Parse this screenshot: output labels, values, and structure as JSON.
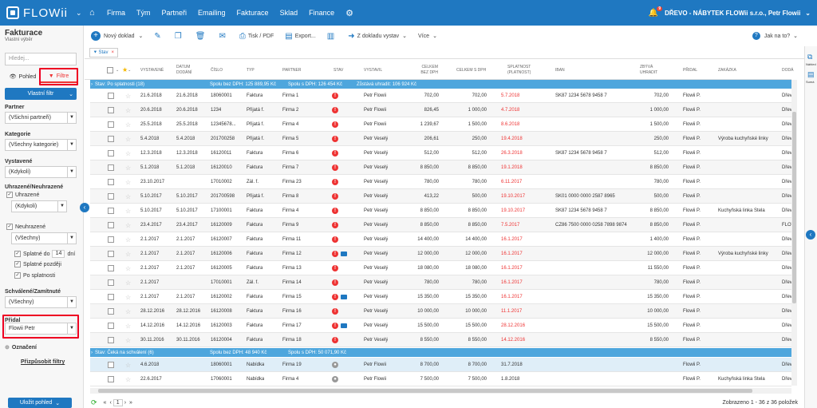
{
  "app": {
    "logo": "FLOWii"
  },
  "nav": {
    "items": [
      "Firma",
      "Tým",
      "Partneři",
      "Emailing",
      "Fakturace",
      "Sklad",
      "Finance"
    ]
  },
  "user": {
    "notifications": "9",
    "company": "DŘEVO - NÁBYTEK FLOWii s.r.o., Petr Flowii"
  },
  "left": {
    "title": "Fakturace",
    "subtitle": "Vlastní výběr",
    "search_placeholder": "Hledej...",
    "tab_view": "Pohled",
    "tab_filter": "Filtre",
    "custom_filter": "Vlastní filtr",
    "partner_label": "Partner",
    "partner_value": "(Všichni partneři)",
    "category_label": "Kategorie",
    "category_value": "(Všechny kategorie)",
    "issued_label": "Vystavené",
    "issued_value": "(Kdykoli)",
    "paid_label": "Uhrazené/Neuhrazené",
    "paid_check": "Uhrazené",
    "paid_value": "(Kdykoli)",
    "unpaid_check": "Neuhrazené",
    "unpaid_value": "(Všechny)",
    "due_to": "Splatné do",
    "due_days": "14",
    "days": "dní",
    "due_later": "Splatné později",
    "after_due": "Po splatnosti",
    "approved_label": "Schválené/Zamítnuté",
    "approved_value": "(Všechny)",
    "added_label": "Přidal",
    "added_value": "Flowii Petr",
    "marking": "Označení",
    "customize": "Přizpůsobit filtry",
    "save_view": "Uložit pohled"
  },
  "toolbar": {
    "new_doc": "Nový doklad",
    "print": "Tisk / PDF",
    "export": "Export...",
    "from_stock": "Z dokladu vystav",
    "more": "Více",
    "help": "Jak na to?"
  },
  "chip": {
    "label": "Stav"
  },
  "columns": [
    "VYSTAVENÉ",
    "DATUM DODÁNÍ",
    "ČÍSLO",
    "TYP",
    "PARTNER",
    "STAV",
    "VYSTAVIL",
    "CELKEM BEZ DPH",
    "CELKEM S DPH",
    "SPLATNOST (PLATNOST)",
    "IBAN",
    "ZBÝVÁ UHRADIT",
    "PŘIDAL",
    "ZAKÁZKA",
    "DODÁ"
  ],
  "group1": {
    "label": "Stav: Po splatnosti (18)",
    "sum1": "Spolu bez DPH: 125 889,95 Kč",
    "sum2": "Spolu s DPH: 126 454 Kč",
    "sum3": "Zůstává uhradit: 106 924 Kč"
  },
  "group2": {
    "label": "Stav: Čeká na schválení (6)",
    "sum1": "Spolu bez DPH: 48 940 Kč",
    "sum2": "Spolu s DPH: 50 071,90 Kč"
  },
  "rows": [
    {
      "d1": "21.6.2018",
      "d2": "21.6.2018",
      "num": "18060001",
      "type": "Faktura",
      "partner": "Firma 1",
      "mail": false,
      "by": "Petr Flowii",
      "net": "702,00",
      "gross": "702,00",
      "due": "5.7.2018",
      "iban": "SK87 1234 5678 9458 7",
      "rem": "702,00",
      "added": "Flowii P.",
      "order": "",
      "dod": "Dřev"
    },
    {
      "d1": "20.6.2018",
      "d2": "20.6.2018",
      "num": "1234",
      "type": "Přijatá f.",
      "partner": "Firma 2",
      "mail": false,
      "by": "Petr Flowii",
      "net": "826,45",
      "gross": "1 000,00",
      "due": "4.7.2018",
      "iban": "",
      "rem": "1 000,00",
      "added": "Flowii P.",
      "order": "",
      "dod": "Dřev"
    },
    {
      "d1": "25.5.2018",
      "d2": "25.5.2018",
      "num": "12345678...",
      "type": "Přijatá f.",
      "partner": "Firma 4",
      "mail": false,
      "by": "Petr Flowii",
      "net": "1 239,67",
      "gross": "1 500,00",
      "due": "8.6.2018",
      "iban": "",
      "rem": "1 500,00",
      "added": "Flowii P.",
      "order": "",
      "dod": "Dřev"
    },
    {
      "d1": "5.4.2018",
      "d2": "5.4.2018",
      "num": "201700258",
      "type": "Přijatá f.",
      "partner": "Firma 5",
      "mail": false,
      "by": "Petr Veselý",
      "net": "206,61",
      "gross": "250,00",
      "due": "19.4.2018",
      "iban": "",
      "rem": "250,00",
      "added": "Flowii P.",
      "order": "Výroba kuchyňské linky",
      "dod": "Dřev"
    },
    {
      "d1": "12.3.2018",
      "d2": "12.3.2018",
      "num": "16120011",
      "type": "Faktura",
      "partner": "Firma 6",
      "mail": false,
      "by": "Petr Veselý",
      "net": "512,00",
      "gross": "512,00",
      "due": "26.3.2018",
      "iban": "SK87 1234 5678 9458 7",
      "rem": "512,00",
      "added": "Flowii P.",
      "order": "",
      "dod": "Dřev"
    },
    {
      "d1": "5.1.2018",
      "d2": "5.1.2018",
      "num": "16120010",
      "type": "Faktura",
      "partner": "Firma 7",
      "mail": false,
      "by": "Petr Veselý",
      "net": "8 850,00",
      "gross": "8 850,00",
      "due": "19.1.2018",
      "iban": "",
      "rem": "8 850,00",
      "added": "Flowii P.",
      "order": "",
      "dod": "Dřev"
    },
    {
      "d1": "23.10.2017",
      "d2": "",
      "num": "17010002",
      "type": "Zál. f.",
      "partner": "Firma 23",
      "mail": false,
      "by": "Petr Veselý",
      "net": "780,00",
      "gross": "780,00",
      "due": "6.11.2017",
      "iban": "",
      "rem": "780,00",
      "added": "Flowii P.",
      "order": "",
      "dod": "Dřev"
    },
    {
      "d1": "5.10.2017",
      "d2": "5.10.2017",
      "num": "201700598",
      "type": "Přijatá f.",
      "partner": "Firma 8",
      "mail": false,
      "by": "Petr Veselý",
      "net": "413,22",
      "gross": "500,00",
      "due": "19.10.2017",
      "iban": "SK01 0000 0000 2587 8965",
      "rem": "500,00",
      "added": "Flowii P.",
      "order": "",
      "dod": "Dřev"
    },
    {
      "d1": "5.10.2017",
      "d2": "5.10.2017",
      "num": "17100001",
      "type": "Faktura",
      "partner": "Firma 4",
      "mail": false,
      "by": "Petr Veselý",
      "net": "8 850,00",
      "gross": "8 850,00",
      "due": "19.10.2017",
      "iban": "SK87 1234 5678 9458 7",
      "rem": "8 850,00",
      "added": "Flowii P.",
      "order": "Kuchyňská linka Stela",
      "dod": "Dřev"
    },
    {
      "d1": "23.4.2017",
      "d2": "23.4.2017",
      "num": "16120009",
      "type": "Faktura",
      "partner": "Firma 9",
      "mail": false,
      "by": "Petr Veselý",
      "net": "8 850,00",
      "gross": "8 850,00",
      "due": "7.5.2017",
      "iban": "CZ86 7500 0000 0258 7898 9874",
      "rem": "8 850,00",
      "added": "Flowii P.",
      "order": "",
      "dod": "FLOV"
    },
    {
      "d1": "2.1.2017",
      "d2": "2.1.2017",
      "num": "16120007",
      "type": "Faktura",
      "partner": "Firma 11",
      "mail": false,
      "by": "Petr Veselý",
      "net": "14 400,00",
      "gross": "14 400,00",
      "due": "16.1.2017",
      "iban": "",
      "rem": "1 400,00",
      "added": "Flowii P.",
      "order": "",
      "dod": "Dřev"
    },
    {
      "d1": "2.1.2017",
      "d2": "2.1.2017",
      "num": "16120006",
      "type": "Faktura",
      "partner": "Firma 12",
      "mail": true,
      "by": "Petr Veselý",
      "net": "12 000,00",
      "gross": "12 000,00",
      "due": "16.1.2017",
      "iban": "",
      "rem": "12 000,00",
      "added": "Flowii P.",
      "order": "Výroba kuchyňské linky",
      "dod": "Dřev"
    },
    {
      "d1": "2.1.2017",
      "d2": "2.1.2017",
      "num": "16120005",
      "type": "Faktura",
      "partner": "Firma 13",
      "mail": false,
      "by": "Petr Veselý",
      "net": "18 080,00",
      "gross": "18 080,00",
      "due": "16.1.2017",
      "iban": "",
      "rem": "11 550,00",
      "added": "Flowii P.",
      "order": "",
      "dod": "Dřev"
    },
    {
      "d1": "2.1.2017",
      "d2": "",
      "num": "17010001",
      "type": "Zál. f.",
      "partner": "Firma 14",
      "mail": false,
      "by": "Petr Veselý",
      "net": "780,00",
      "gross": "780,00",
      "due": "16.1.2017",
      "iban": "",
      "rem": "780,00",
      "added": "Flowii P.",
      "order": "",
      "dod": "Dřev"
    },
    {
      "d1": "2.1.2017",
      "d2": "2.1.2017",
      "num": "16120002",
      "type": "Faktura",
      "partner": "Firma 15",
      "mail": true,
      "by": "Petr Veselý",
      "net": "15 350,00",
      "gross": "15 350,00",
      "due": "16.1.2017",
      "iban": "",
      "rem": "15 350,00",
      "added": "Flowii P.",
      "order": "",
      "dod": "Dřev"
    },
    {
      "d1": "28.12.2016",
      "d2": "28.12.2016",
      "num": "16120008",
      "type": "Faktura",
      "partner": "Firma 16",
      "mail": false,
      "by": "Petr Veselý",
      "net": "10 000,00",
      "gross": "10 000,00",
      "due": "11.1.2017",
      "iban": "",
      "rem": "10 000,00",
      "added": "Flowii P.",
      "order": "",
      "dod": "Dřev"
    },
    {
      "d1": "14.12.2016",
      "d2": "14.12.2016",
      "num": "16120003",
      "type": "Faktura",
      "partner": "Firma 17",
      "mail": true,
      "by": "Petr Veselý",
      "net": "15 500,00",
      "gross": "15 500,00",
      "due": "28.12.2016",
      "iban": "",
      "rem": "15 500,00",
      "added": "Flowii P.",
      "order": "",
      "dod": "Dřev"
    },
    {
      "d1": "30.11.2016",
      "d2": "30.11.2016",
      "num": "16120004",
      "type": "Faktura",
      "partner": "Firma 18",
      "mail": false,
      "by": "Petr Veselý",
      "net": "8 550,00",
      "gross": "8 550,00",
      "due": "14.12.2016",
      "iban": "",
      "rem": "8 550,00",
      "added": "Flowii P.",
      "order": "",
      "dod": "Dřev"
    }
  ],
  "rows2": [
    {
      "d1": "4.6.2018",
      "d2": "",
      "num": "18060001",
      "type": "Nabídka",
      "partner": "Firma 19",
      "by": "Petr Flowii",
      "net": "8 700,00",
      "gross": "8 700,00",
      "due": "31.7.2018",
      "iban": "",
      "rem": "",
      "added": "Flowii P.",
      "order": "",
      "dod": "Dřev"
    },
    {
      "d1": "22.6.2017",
      "d2": "",
      "num": "17060001",
      "type": "Nabídka",
      "partner": "Firma 4",
      "by": "Petr Flowii",
      "net": "7 500,00",
      "gross": "7 500,00",
      "due": "1.8.2018",
      "iban": "",
      "rem": "",
      "added": "Flowii P.",
      "order": "Kuchyňská linka Stela",
      "dod": "Dřev"
    }
  ],
  "footer": {
    "page": "1",
    "shown": "Zobrazeno 1 - 36 z 36 položek"
  },
  "right": {
    "label1": "Náhled",
    "label2": "Sumá"
  },
  "colors": {
    "brand": "#1f78c1",
    "group": "#4ea6dd",
    "alert": "#e33"
  }
}
